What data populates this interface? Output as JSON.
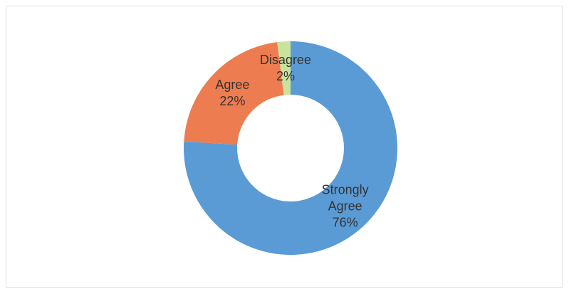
{
  "chart_data": {
    "type": "donut",
    "categories": [
      "Strongly Agree",
      "Agree",
      "Disagree"
    ],
    "values": [
      76,
      22,
      2
    ],
    "value_labels": [
      "76%",
      "22%",
      "2%"
    ],
    "colors": [
      "#5b9bd5",
      "#ed7d50",
      "#c9e29c"
    ]
  }
}
